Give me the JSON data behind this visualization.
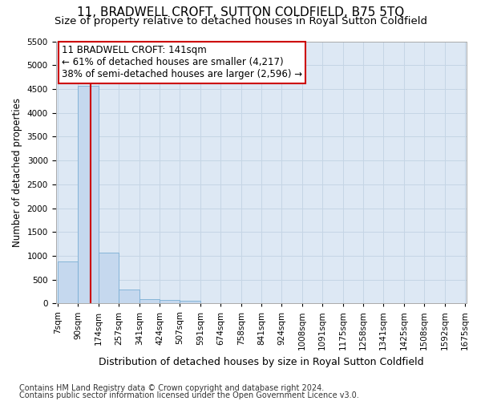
{
  "title": "11, BRADWELL CROFT, SUTTON COLDFIELD, B75 5TQ",
  "subtitle": "Size of property relative to detached houses in Royal Sutton Coldfield",
  "xlabel": "Distribution of detached houses by size in Royal Sutton Coldfield",
  "ylabel": "Number of detached properties",
  "footnote1": "Contains HM Land Registry data © Crown copyright and database right 2024.",
  "footnote2": "Contains public sector information licensed under the Open Government Licence v3.0.",
  "annotation_line1": "11 BRADWELL CROFT: 141sqm",
  "annotation_line2": "← 61% of detached houses are smaller (4,217)",
  "annotation_line3": "38% of semi-detached houses are larger (2,596) →",
  "bin_edges": [
    7,
    90,
    174,
    257,
    341,
    424,
    507,
    591,
    674,
    758,
    841,
    924,
    1008,
    1091,
    1175,
    1258,
    1341,
    1425,
    1508,
    1592,
    1675
  ],
  "bar_heights": [
    880,
    4560,
    1060,
    290,
    90,
    80,
    50,
    0,
    0,
    0,
    0,
    0,
    0,
    0,
    0,
    0,
    0,
    0,
    0,
    0
  ],
  "bar_color": "#c5d8ee",
  "bar_edge_color": "#7aaed4",
  "vline_color": "#cc0000",
  "vline_x": 141,
  "ylim": [
    0,
    5500
  ],
  "yticks": [
    0,
    500,
    1000,
    1500,
    2000,
    2500,
    3000,
    3500,
    4000,
    4500,
    5000,
    5500
  ],
  "grid_color": "#c5d5e5",
  "background_color": "#dde8f4",
  "title_fontsize": 11,
  "subtitle_fontsize": 9.5,
  "ylabel_fontsize": 8.5,
  "xlabel_fontsize": 9,
  "tick_fontsize": 7.5,
  "annotation_fontsize": 8.5,
  "footnote_fontsize": 7
}
